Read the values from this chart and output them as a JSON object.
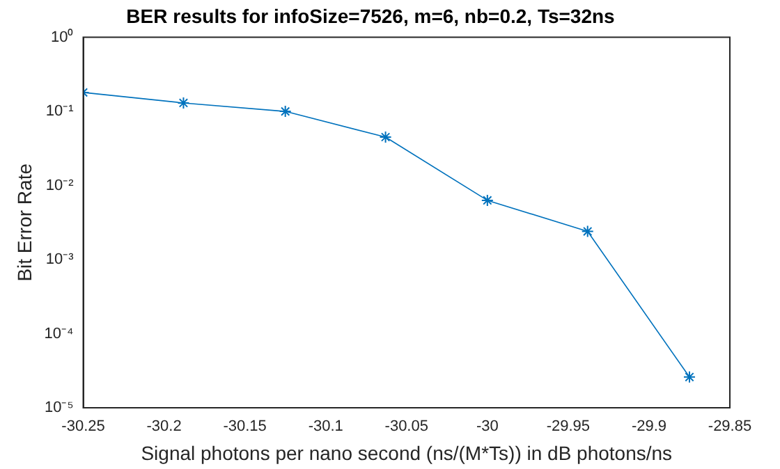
{
  "chart_data": {
    "type": "line",
    "title": "BER results for infoSize=7526, m=6, nb=0.2, Ts=32ns",
    "xlabel": "Signal photons per nano second (ns/(M*Ts)) in dB photons/ns",
    "ylabel": "Bit Error Rate",
    "x": [
      -30.25,
      -30.188,
      -30.125,
      -30.063,
      -30.0,
      -29.938,
      -29.875
    ],
    "series": [
      {
        "color": "#0072bd",
        "values": [
          0.18,
          0.13,
          0.1,
          0.045,
          0.0063,
          0.0024,
          2.6e-05
        ]
      }
    ],
    "xlim": [
      -30.25,
      -29.85
    ],
    "xticks": [
      -30.25,
      -30.2,
      -30.15,
      -30.1,
      -30.05,
      -30,
      -29.95,
      -29.9,
      -29.85
    ],
    "ylim": [
      1e-05,
      1
    ],
    "yticks": [
      {
        "value": 1e-05,
        "label": "10⁻⁵"
      },
      {
        "value": 0.0001,
        "label": "10⁻⁴"
      },
      {
        "value": 0.001,
        "label": "10⁻³"
      },
      {
        "value": 0.01,
        "label": "10⁻²"
      },
      {
        "value": 0.1,
        "label": "10⁻¹"
      },
      {
        "value": 1,
        "label": "10⁰"
      }
    ],
    "log": "y",
    "grid": false,
    "legend": false,
    "marker": "cross",
    "line_style": "solid"
  }
}
